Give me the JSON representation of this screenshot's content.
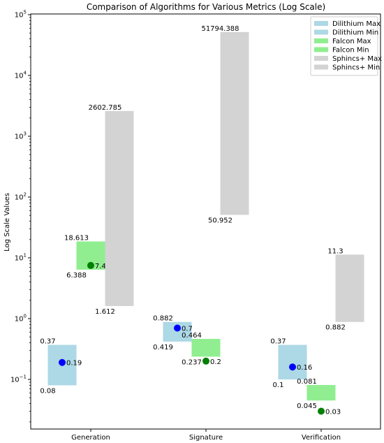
{
  "chart_data": {
    "type": "bar",
    "title": "Comparison of Algorithms for Various Metrics (Log Scale)",
    "xlabel": "",
    "ylabel": "Log Scale Values",
    "yscale": "log",
    "ylim": [
      0.02,
      100000
    ],
    "y_ticks": [
      {
        "value": 0.1,
        "base": "10",
        "exp": "−1"
      },
      {
        "value": 1,
        "base": "10",
        "exp": "0"
      },
      {
        "value": 10,
        "base": "10",
        "exp": "1"
      },
      {
        "value": 100,
        "base": "10",
        "exp": "2"
      },
      {
        "value": 1000,
        "base": "10",
        "exp": "3"
      },
      {
        "value": 10000,
        "base": "10",
        "exp": "4"
      },
      {
        "value": 100000,
        "base": "10",
        "exp": "5"
      }
    ],
    "categories": [
      "Generation",
      "Signature",
      "Verification"
    ],
    "grid": false,
    "legend_position": "top-right",
    "series": [
      {
        "name": "Dilithium",
        "color": "#add8e6",
        "max": [
          0.37,
          0.882,
          0.37
        ],
        "min": [
          0.08,
          0.419,
          0.1
        ],
        "max_labels": [
          "0.37",
          "0.882",
          "0.37"
        ],
        "min_labels": [
          "0.08",
          "0.419",
          "0.1"
        ],
        "point": [
          0.19,
          0.7,
          0.16
        ],
        "point_labels": [
          "0.19",
          "0.7",
          "0.16"
        ],
        "point_color": "#0000ff"
      },
      {
        "name": "Falcon",
        "color": "#90ee90",
        "max": [
          18.613,
          0.464,
          0.081
        ],
        "min": [
          6.388,
          0.237,
          0.045
        ],
        "max_labels": [
          "18.613",
          "0.464",
          "0.081"
        ],
        "min_labels": [
          "6.388",
          "0.237",
          "0.045"
        ],
        "point": [
          7.49,
          0.2,
          0.03
        ],
        "point_labels": [
          "7.49",
          "0.2",
          "0.03"
        ],
        "point_color": "#008000"
      },
      {
        "name": "Sphincs+",
        "color": "#d3d3d3",
        "max": [
          2602.785,
          51794.388,
          11.3
        ],
        "min": [
          1.612,
          50.952,
          0.882
        ],
        "max_labels": [
          "2602.785",
          "51794.388",
          "11.3"
        ],
        "min_labels": [
          "1.612",
          "50.952",
          "0.882"
        ],
        "point": null,
        "point_labels": null,
        "point_color": null
      }
    ],
    "legend": [
      "Dilithium Max",
      "Dilithium Min",
      "Falcon Max",
      "Falcon Min",
      "Sphincs+ Max",
      "Sphincs+ Min"
    ]
  }
}
